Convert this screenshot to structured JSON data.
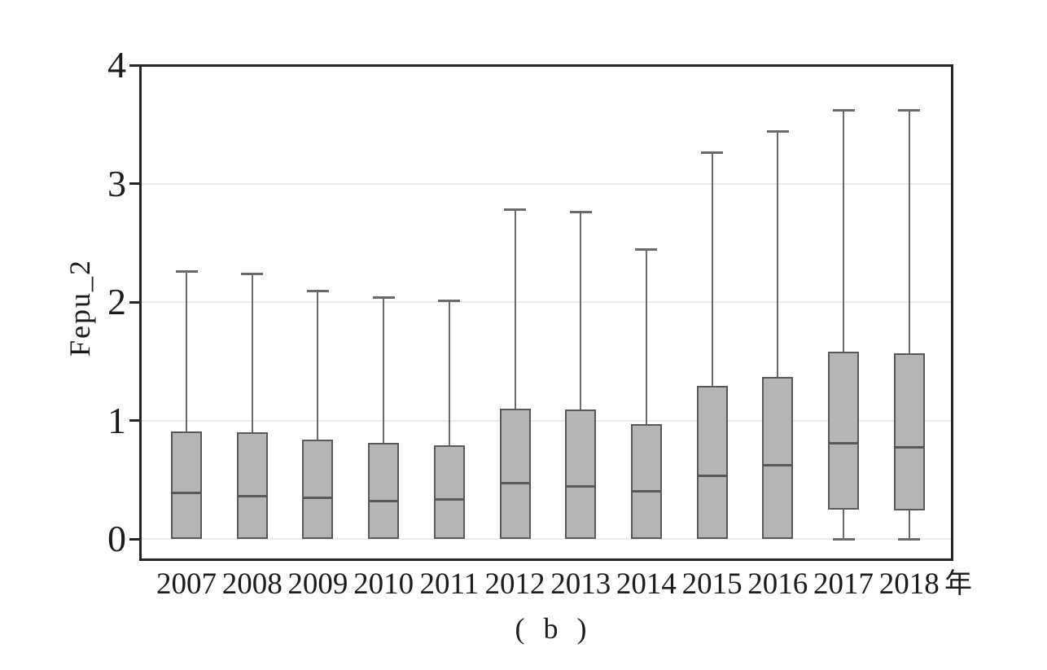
{
  "chart_data": {
    "type": "boxplot",
    "title": "",
    "caption": "( b )",
    "ylabel": "Fepu_2",
    "x_unit_label": "年",
    "ylim": [
      0,
      4
    ],
    "yticks": [
      "0",
      "1",
      "2",
      "3",
      "4"
    ],
    "gridline_values": [
      0,
      1,
      2,
      3
    ],
    "grid": true,
    "legend": "none",
    "categories": [
      "2007",
      "2008",
      "2009",
      "2010",
      "2011",
      "2012",
      "2013",
      "2014",
      "2015",
      "2016",
      "2017",
      "2018"
    ],
    "series": [
      {
        "year": "2007",
        "whisker_low": 0,
        "q1": 0,
        "median": 0.39,
        "q3": 0.91,
        "whisker_high": 2.26
      },
      {
        "year": "2008",
        "whisker_low": 0,
        "q1": 0,
        "median": 0.36,
        "q3": 0.9,
        "whisker_high": 2.24
      },
      {
        "year": "2009",
        "whisker_low": 0,
        "q1": 0,
        "median": 0.35,
        "q3": 0.84,
        "whisker_high": 2.09
      },
      {
        "year": "2010",
        "whisker_low": 0,
        "q1": 0,
        "median": 0.32,
        "q3": 0.81,
        "whisker_high": 2.04
      },
      {
        "year": "2011",
        "whisker_low": 0,
        "q1": 0,
        "median": 0.33,
        "q3": 0.79,
        "whisker_high": 2.01
      },
      {
        "year": "2012",
        "whisker_low": 0,
        "q1": 0,
        "median": 0.47,
        "q3": 1.1,
        "whisker_high": 2.78
      },
      {
        "year": "2013",
        "whisker_low": 0,
        "q1": 0,
        "median": 0.44,
        "q3": 1.09,
        "whisker_high": 2.76
      },
      {
        "year": "2014",
        "whisker_low": 0,
        "q1": 0,
        "median": 0.4,
        "q3": 0.97,
        "whisker_high": 2.44
      },
      {
        "year": "2015",
        "whisker_low": 0,
        "q1": 0,
        "median": 0.53,
        "q3": 1.29,
        "whisker_high": 3.26
      },
      {
        "year": "2016",
        "whisker_low": 0,
        "q1": 0,
        "median": 0.62,
        "q3": 1.37,
        "whisker_high": 3.44
      },
      {
        "year": "2017",
        "whisker_low": 0,
        "q1": 0.25,
        "median": 0.81,
        "q3": 1.58,
        "whisker_high": 3.62
      },
      {
        "year": "2018",
        "whisker_low": 0,
        "q1": 0.24,
        "median": 0.77,
        "q3": 1.57,
        "whisker_high": 3.62
      }
    ],
    "colors": {
      "background": "#ffffff",
      "frame": "#262626",
      "grid": "#ebebeb",
      "box_fill": "#b5b5b5",
      "box_border": "#595959",
      "whisker": "#6a6a6a",
      "text": "#1c1c1c"
    }
  }
}
